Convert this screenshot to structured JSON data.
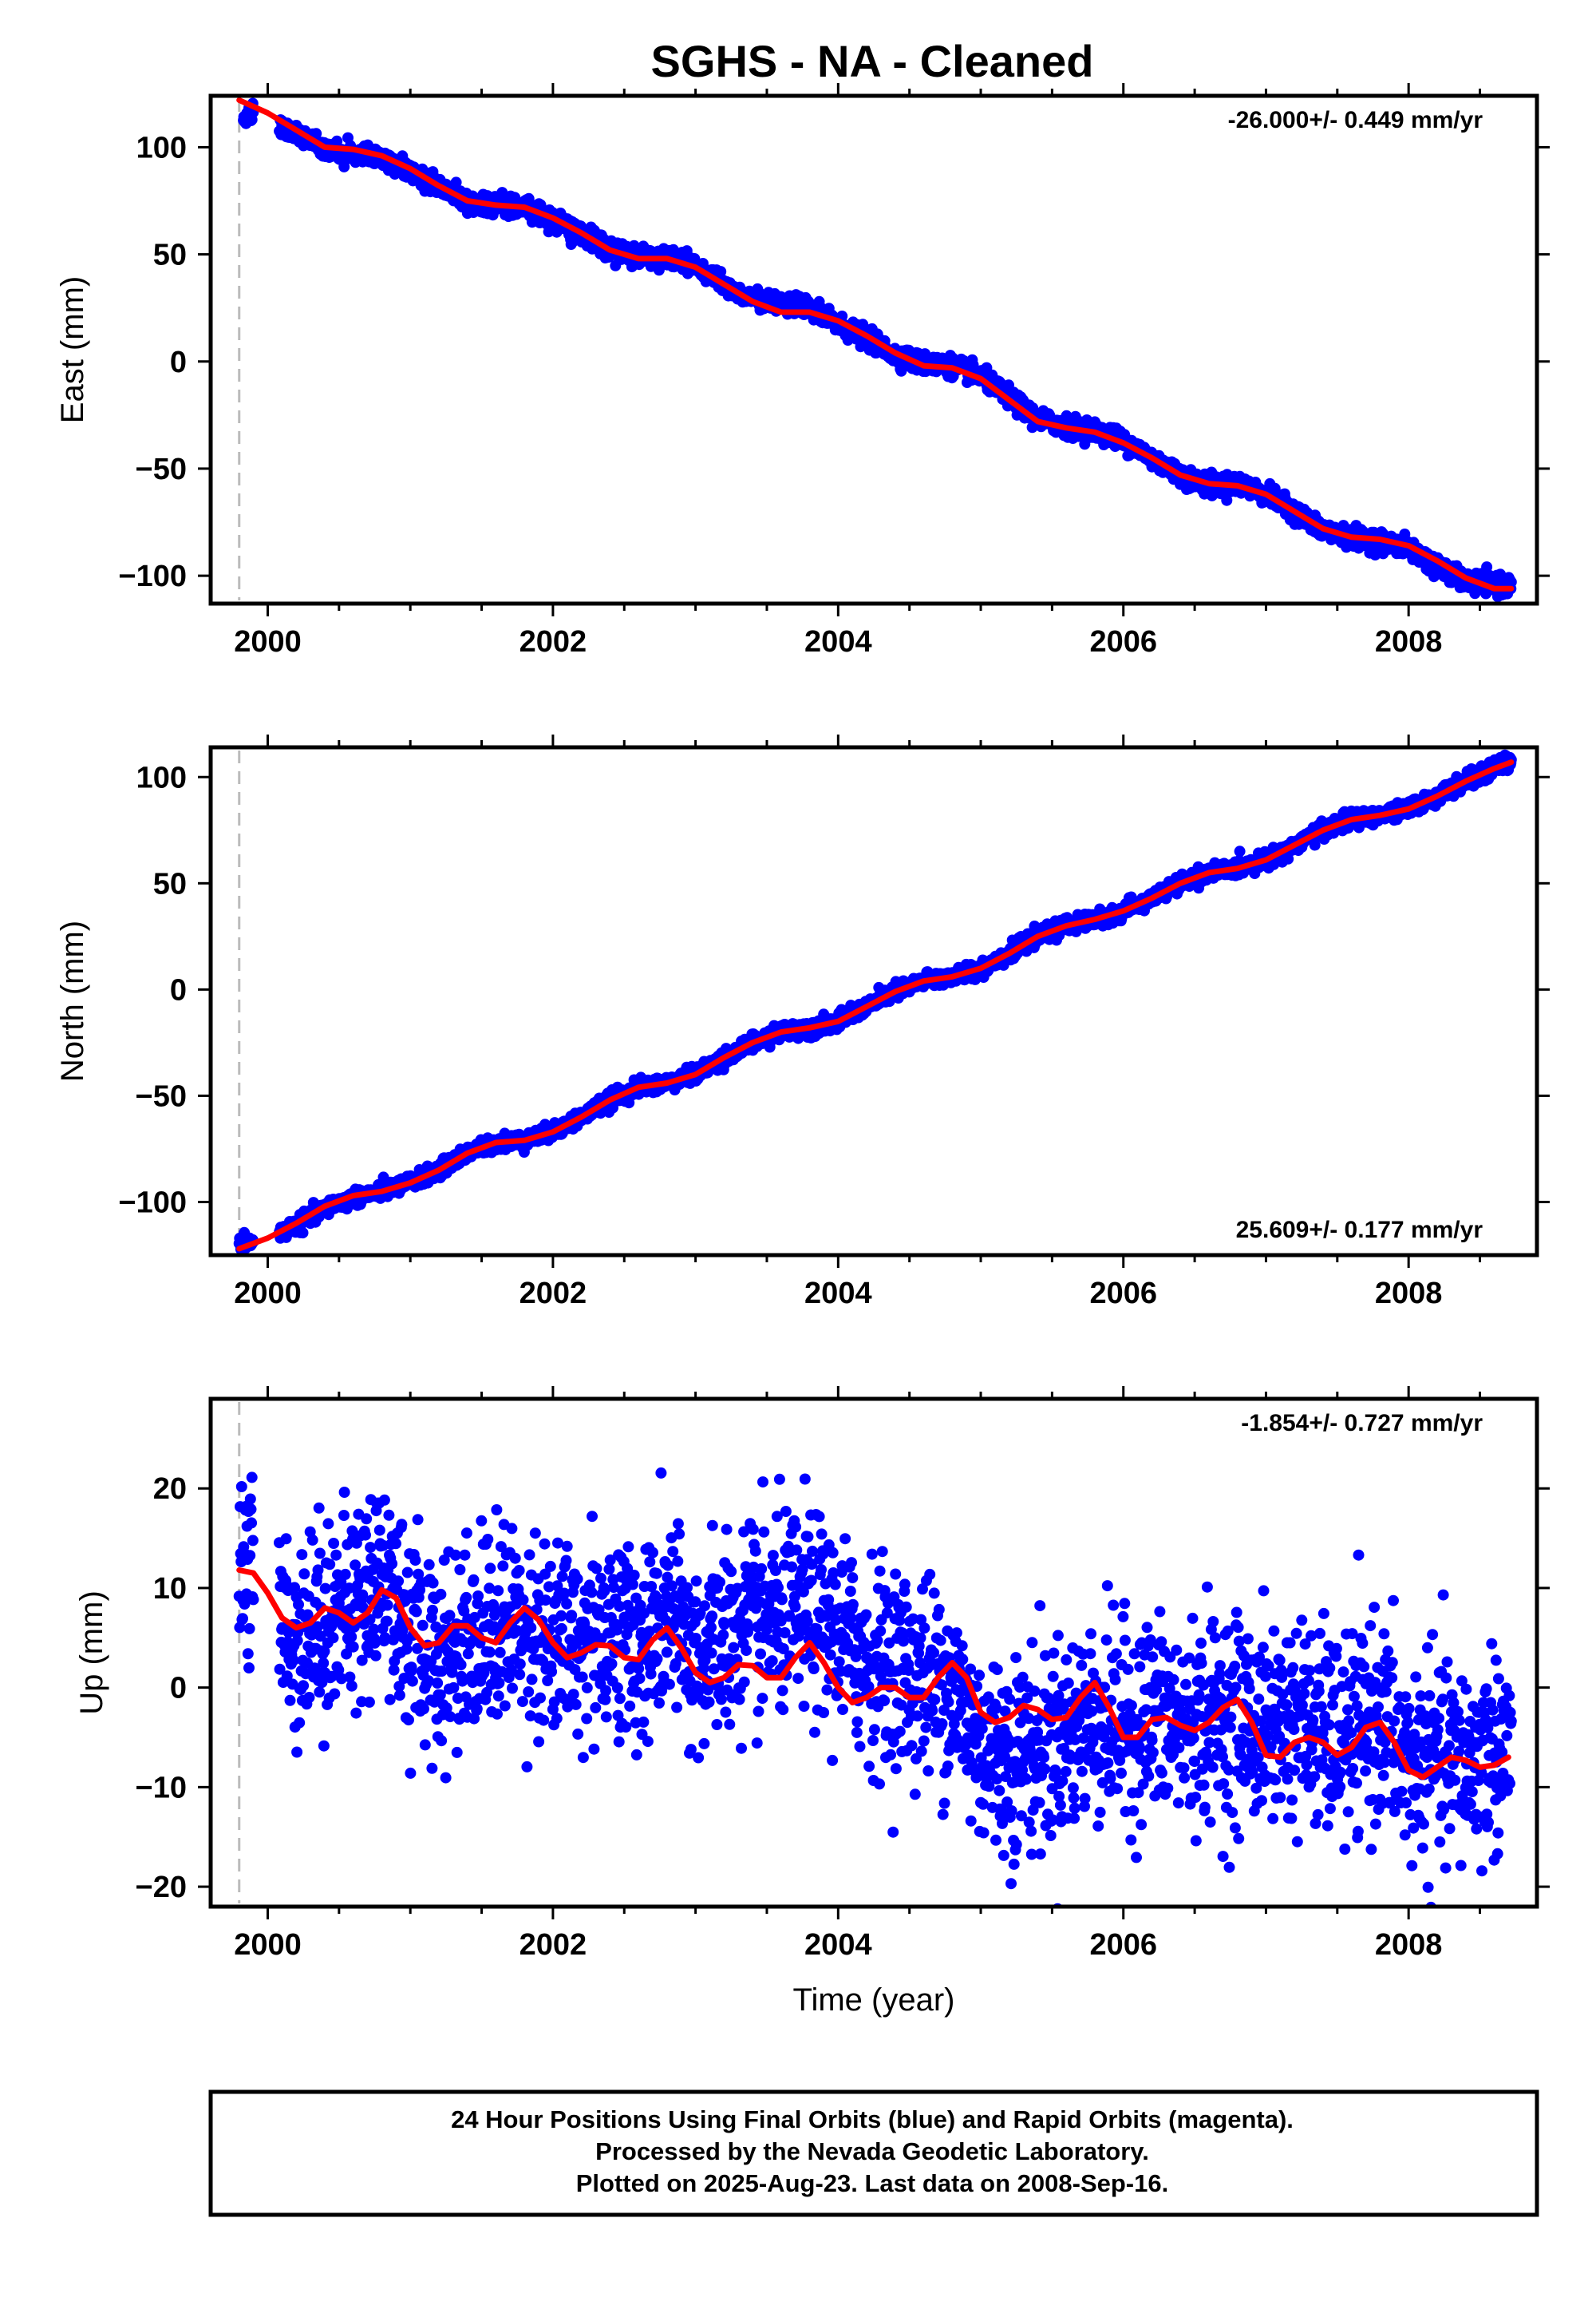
{
  "title": "SGHS  - NA - Cleaned",
  "footer": {
    "line1": "24 Hour Positions Using Final Orbits (blue) and Rapid Orbits (magenta).",
    "line2": "Processed by the Nevada Geodetic Laboratory.",
    "line3": "Plotted on 2025-Aug-23. Last data on 2008-Sep-16."
  },
  "colors": {
    "observations": "#0000ff",
    "model_fit": "#ff0000",
    "start_marker": "#bbbbbb",
    "frame": "#000000"
  },
  "chart_data": [
    {
      "type": "scatter",
      "component": "east",
      "ylabel": "East (mm)",
      "xlabel": "",
      "xlim": [
        1999.6,
        2008.9
      ],
      "ylim": [
        -113,
        124
      ],
      "x_ticks": [
        2000,
        2002,
        2004,
        2006,
        2008
      ],
      "y_ticks": [
        -100,
        -50,
        0,
        50,
        100
      ],
      "y_tick_labels": [
        "−100",
        "−50",
        "0",
        "50",
        "100"
      ],
      "rate_label": "-26.000+/- 0.449 mm/yr",
      "rate_label_position": "top-right",
      "start_marker_year": 1999.8,
      "noise_mm": 2.2,
      "model_fit": {
        "name": "",
        "x": [
          1999.8,
          2000.0,
          2000.2,
          2000.4,
          2000.6,
          2000.8,
          2001.0,
          2001.2,
          2001.4,
          2001.6,
          2001.8,
          2002.0,
          2002.2,
          2002.4,
          2002.6,
          2002.8,
          2003.0,
          2003.2,
          2003.4,
          2003.6,
          2003.8,
          2004.0,
          2004.2,
          2004.4,
          2004.6,
          2004.8,
          2005.0,
          2005.2,
          2005.4,
          2005.6,
          2005.8,
          2006.0,
          2006.2,
          2006.4,
          2006.6,
          2006.8,
          2007.0,
          2007.2,
          2007.4,
          2007.6,
          2007.8,
          2008.0,
          2008.2,
          2008.4,
          2008.6,
          2008.72
        ],
        "y": [
          122,
          116,
          108,
          100,
          99,
          96,
          90,
          82,
          75,
          73,
          72,
          67,
          60,
          52,
          48,
          48,
          44,
          36,
          28,
          23,
          23,
          19,
          12,
          4,
          -2,
          -3,
          -8,
          -18,
          -28,
          -31,
          -33,
          -38,
          -45,
          -53,
          -57,
          -58,
          -62,
          -70,
          -78,
          -82,
          -83,
          -86,
          -93,
          -101,
          -106,
          -106
        ]
      },
      "observations": {
        "name": "",
        "anchors_x": [
          1999.83,
          1999.87,
          2000.1,
          2000.4,
          2000.6,
          2000.8,
          2001.0,
          2001.2,
          2001.4,
          2001.6,
          2001.8,
          2002.0,
          2002.2,
          2002.4,
          2002.6,
          2002.8,
          2002.95,
          2003.1,
          2003.3,
          2003.5,
          2003.7,
          2003.85,
          2004.0,
          2004.2,
          2004.4,
          2004.6,
          2004.8,
          2005.0,
          2005.2,
          2005.4,
          2005.6,
          2005.8,
          2006.0,
          2006.2,
          2006.4,
          2006.6,
          2006.8,
          2007.0,
          2007.2,
          2007.4,
          2007.6,
          2007.8,
          2008.0,
          2008.2,
          2008.4,
          2008.6,
          2008.72
        ],
        "anchors_y": [
          113,
          116,
          110,
          99,
          97,
          95,
          89,
          82,
          74,
          73,
          72,
          66,
          60,
          53,
          49,
          48,
          47,
          40,
          32,
          28,
          27,
          22,
          17,
          11,
          3,
          -1,
          -2,
          -7,
          -17,
          -27,
          -30,
          -32,
          -37,
          -45,
          -53,
          -58,
          -57,
          -62,
          -70,
          -79,
          -82,
          -84,
          -87,
          -96,
          -103,
          -104,
          -105
        ]
      }
    },
    {
      "type": "scatter",
      "component": "north",
      "ylabel": "North (mm)",
      "xlabel": "",
      "xlim": [
        1999.6,
        2008.9
      ],
      "ylim": [
        -125,
        114
      ],
      "x_ticks": [
        2000,
        2002,
        2004,
        2006,
        2008
      ],
      "y_ticks": [
        -100,
        -50,
        0,
        50,
        100
      ],
      "y_tick_labels": [
        "−100",
        "−50",
        "0",
        "50",
        "100"
      ],
      "rate_label": "25.609+/- 0.177 mm/yr",
      "rate_label_position": "bottom-right",
      "start_marker_year": 1999.8,
      "noise_mm": 1.8,
      "model_fit": {
        "name": "",
        "x": [
          1999.8,
          2000.0,
          2000.2,
          2000.4,
          2000.6,
          2000.8,
          2001.0,
          2001.2,
          2001.4,
          2001.6,
          2001.8,
          2002.0,
          2002.2,
          2002.4,
          2002.6,
          2002.8,
          2003.0,
          2003.2,
          2003.4,
          2003.6,
          2003.8,
          2004.0,
          2004.2,
          2004.4,
          2004.6,
          2004.8,
          2005.0,
          2005.2,
          2005.4,
          2005.6,
          2005.8,
          2006.0,
          2006.2,
          2006.4,
          2006.6,
          2006.8,
          2007.0,
          2007.2,
          2007.4,
          2007.6,
          2007.8,
          2008.0,
          2008.2,
          2008.4,
          2008.6,
          2008.72
        ],
        "y": [
          -122,
          -117,
          -110,
          -102,
          -97,
          -95,
          -91,
          -85,
          -77,
          -72,
          -71,
          -67,
          -60,
          -52,
          -46,
          -44,
          -40,
          -32,
          -25,
          -20,
          -18,
          -15,
          -8,
          -1,
          4,
          6,
          10,
          17,
          25,
          30,
          33,
          37,
          43,
          50,
          55,
          57,
          61,
          68,
          75,
          80,
          82,
          85,
          91,
          98,
          104,
          107
        ]
      },
      "observations": {
        "name": "",
        "anchors_x": [
          1999.8,
          2000.0,
          2000.2,
          2000.4,
          2000.6,
          2000.8,
          2001.0,
          2001.2,
          2001.4,
          2001.6,
          2001.8,
          2002.0,
          2002.2,
          2002.4,
          2002.6,
          2002.8,
          2003.0,
          2003.2,
          2003.4,
          2003.6,
          2003.8,
          2004.0,
          2004.2,
          2004.4,
          2004.6,
          2004.8,
          2005.0,
          2005.2,
          2005.4,
          2005.6,
          2005.8,
          2006.0,
          2006.2,
          2006.4,
          2006.6,
          2006.8,
          2007.0,
          2007.2,
          2007.4,
          2007.6,
          2007.8,
          2008.0,
          2008.2,
          2008.4,
          2008.6,
          2008.72
        ],
        "anchors_y": [
          -120,
          -117,
          -111,
          -103,
          -98,
          -95,
          -91,
          -85,
          -77,
          -72,
          -71,
          -67,
          -60,
          -52,
          -46,
          -44,
          -40,
          -32,
          -25,
          -20,
          -18,
          -15,
          -8,
          -1,
          4,
          6,
          10,
          17,
          25,
          30,
          33,
          37,
          43,
          50,
          55,
          57,
          61,
          68,
          75,
          80,
          82,
          85,
          91,
          98,
          104,
          108
        ]
      }
    },
    {
      "type": "scatter",
      "component": "up",
      "ylabel": "Up (mm)",
      "xlabel": "Time (year)",
      "xlim": [
        1999.6,
        2008.9
      ],
      "ylim": [
        -22,
        29
      ],
      "x_ticks": [
        2000,
        2002,
        2004,
        2006,
        2008
      ],
      "y_ticks": [
        -20,
        -10,
        0,
        10,
        20
      ],
      "y_tick_labels": [
        "−20",
        "−10",
        "0",
        "10",
        "20"
      ],
      "rate_label": "-1.854+/- 0.727 mm/yr",
      "rate_label_position": "top-right",
      "start_marker_year": 1999.8,
      "noise_mm": 5.0,
      "model_fit": {
        "name": "",
        "x": [
          1999.8,
          1999.9,
          2000.0,
          2000.1,
          2000.2,
          2000.3,
          2000.4,
          2000.5,
          2000.6,
          2000.7,
          2000.8,
          2000.9,
          2001.0,
          2001.1,
          2001.2,
          2001.3,
          2001.4,
          2001.5,
          2001.6,
          2001.7,
          2001.8,
          2001.9,
          2002.0,
          2002.1,
          2002.2,
          2002.3,
          2002.4,
          2002.5,
          2002.6,
          2002.7,
          2002.8,
          2002.9,
          2003.0,
          2003.1,
          2003.2,
          2003.3,
          2003.4,
          2003.5,
          2003.6,
          2003.7,
          2003.8,
          2003.9,
          2004.0,
          2004.1,
          2004.2,
          2004.3,
          2004.4,
          2004.5,
          2004.6,
          2004.7,
          2004.8,
          2004.9,
          2005.0,
          2005.1,
          2005.2,
          2005.3,
          2005.4,
          2005.5,
          2005.6,
          2005.7,
          2005.8,
          2005.9,
          2006.0,
          2006.1,
          2006.2,
          2006.3,
          2006.4,
          2006.5,
          2006.6,
          2006.7,
          2006.8,
          2006.9,
          2007.0,
          2007.1,
          2007.2,
          2007.3,
          2007.4,
          2007.5,
          2007.6,
          2007.7,
          2007.8,
          2007.9,
          2008.0,
          2008.1,
          2008.2,
          2008.3,
          2008.4,
          2008.5,
          2008.6,
          2008.7
        ],
        "y": [
          11.8,
          11.5,
          9.5,
          7,
          6,
          6.5,
          8,
          7.5,
          6.5,
          7.5,
          9.8,
          9,
          6,
          4.2,
          4.5,
          6.2,
          6.2,
          5,
          4.5,
          6.5,
          8,
          6.8,
          4.5,
          3,
          3.5,
          4.3,
          4.2,
          3,
          2.8,
          4.8,
          6,
          4,
          1.5,
          0.5,
          1,
          2.3,
          2.2,
          1,
          1,
          3,
          4.5,
          2.5,
          0,
          -1.5,
          -1,
          0,
          0,
          -1,
          -1,
          1,
          2.5,
          1,
          -2.5,
          -3.5,
          -3,
          -1.8,
          -2.2,
          -3.2,
          -3,
          -1,
          0.5,
          -2,
          -5,
          -5,
          -3.2,
          -3,
          -3.8,
          -4.3,
          -3.5,
          -2,
          -1.2,
          -3.5,
          -6.8,
          -7,
          -5.5,
          -5,
          -5.5,
          -6.8,
          -6,
          -4,
          -3.5,
          -5.5,
          -8.3,
          -9,
          -8,
          -7,
          -7.3,
          -8,
          -7.8,
          -7
        ]
      },
      "observations": {
        "name": "",
        "anchors_x": [
          1999.8,
          2000.0,
          2000.2,
          2000.4,
          2000.6,
          2000.8,
          2001.0,
          2001.2,
          2001.4,
          2001.6,
          2001.8,
          2002.0,
          2002.2,
          2002.4,
          2002.6,
          2002.8,
          2003.0,
          2003.2,
          2003.4,
          2003.6,
          2003.8,
          2004.0,
          2004.2,
          2004.4,
          2004.6,
          2004.8,
          2005.0,
          2005.2,
          2005.4,
          2005.6,
          2005.8,
          2006.0,
          2006.2,
          2006.4,
          2006.6,
          2006.8,
          2007.0,
          2007.2,
          2007.4,
          2007.6,
          2007.8,
          2008.0,
          2008.2,
          2008.4,
          2008.6,
          2008.72
        ],
        "anchors_y": [
          14,
          8,
          5,
          7,
          8,
          12,
          5,
          3,
          5,
          6,
          7,
          4,
          5,
          6,
          4,
          7,
          3,
          5,
          6,
          7,
          8,
          5,
          3,
          2,
          1,
          0,
          -6,
          -7,
          -6,
          -5,
          -3,
          -4,
          -3,
          -4,
          -3,
          -3,
          -4,
          -3,
          -5,
          -5,
          -3,
          -8,
          -7,
          -8,
          -6,
          -6
        ]
      }
    }
  ]
}
